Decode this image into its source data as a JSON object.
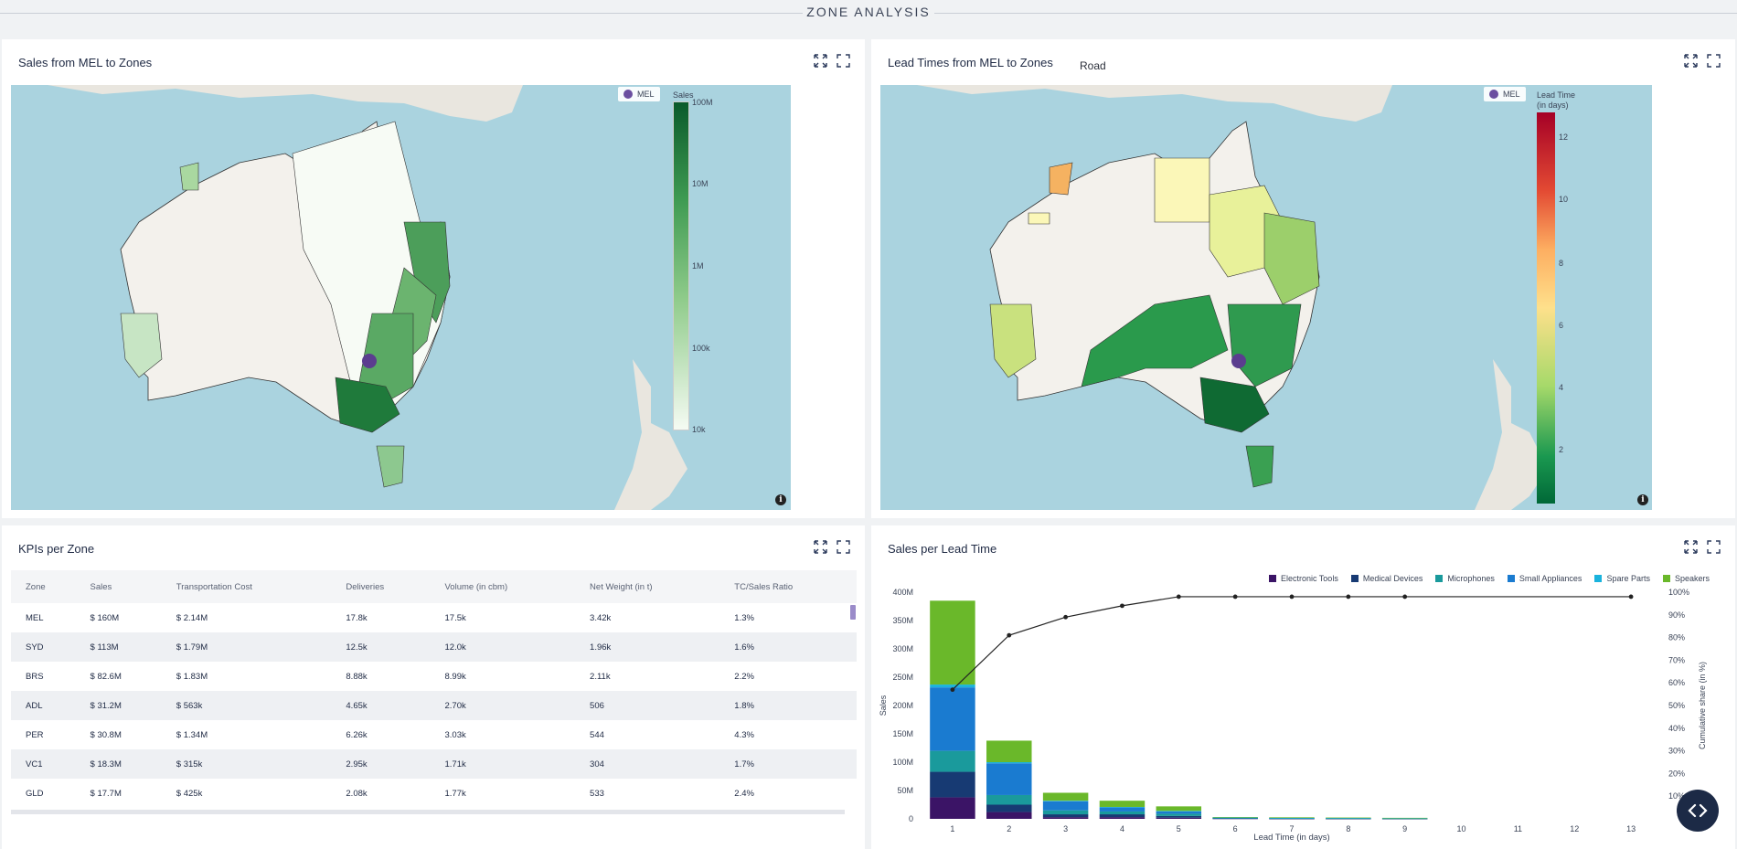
{
  "header": {
    "title": "ZONE ANALYSIS"
  },
  "panels": {
    "sales_map": {
      "title": "Sales from MEL to Zones",
      "marker_legend": "MEL",
      "colorbar": {
        "title": "Sales",
        "ticks": [
          "100M",
          "10M",
          "1M",
          "100k",
          "10k"
        ],
        "color_low": "#f5fbf3",
        "color_high": "#0b5a2b"
      }
    },
    "lead_map": {
      "title": "Lead Times from MEL to Zones",
      "mode": "Road",
      "marker_legend": "MEL",
      "colorbar": {
        "title_line1": "Lead Time",
        "title_line2": "(in days)",
        "ticks": [
          "12",
          "10",
          "8",
          "6",
          "4",
          "2"
        ]
      }
    },
    "kpi": {
      "title": "KPIs per Zone",
      "columns": [
        "Zone",
        "Sales",
        "Transportation Cost",
        "Deliveries",
        "Volume (in cbm)",
        "Net Weight (in t)",
        "TC/Sales Ratio"
      ],
      "rows": [
        [
          "MEL",
          "$ 160M",
          "$ 2.14M",
          "17.8k",
          "17.5k",
          "3.42k",
          "1.3%"
        ],
        [
          "SYD",
          "$ 113M",
          "$ 1.79M",
          "12.5k",
          "12.0k",
          "1.96k",
          "1.6%"
        ],
        [
          "BRS",
          "$ 82.6M",
          "$ 1.83M",
          "8.88k",
          "8.99k",
          "2.11k",
          "2.2%"
        ],
        [
          "ADL",
          "$ 31.2M",
          "$ 563k",
          "4.65k",
          "2.70k",
          "506",
          "1.8%"
        ],
        [
          "PER",
          "$ 30.8M",
          "$ 1.34M",
          "6.26k",
          "3.03k",
          "544",
          "4.3%"
        ],
        [
          "VC1",
          "$ 18.3M",
          "$ 315k",
          "2.95k",
          "1.71k",
          "304",
          "1.7%"
        ],
        [
          "GLD",
          "$ 17.7M",
          "$ 425k",
          "2.08k",
          "1.77k",
          "533",
          "2.4%"
        ]
      ]
    },
    "lead_chart": {
      "title": "Sales per Lead Time"
    }
  },
  "chart_data": {
    "type": "bar",
    "stacked": true,
    "xlabel": "Lead Time (in days)",
    "ylabel": "Sales",
    "y2label": "Cumulative share (in %)",
    "categories": [
      1,
      2,
      3,
      4,
      5,
      6,
      7,
      8,
      9,
      10,
      11,
      12,
      13
    ],
    "ylim": [
      0,
      400
    ],
    "y_ticks": [
      "0",
      "50M",
      "100M",
      "150M",
      "200M",
      "250M",
      "300M",
      "350M",
      "400M"
    ],
    "y2lim": [
      0,
      100
    ],
    "y2_ticks": [
      "10%",
      "20%",
      "30%",
      "40%",
      "50%",
      "60%",
      "70%",
      "80%",
      "90%",
      "100%"
    ],
    "legend_position": "top-right",
    "series": [
      {
        "name": "Electronic Tools",
        "color": "#3b1466",
        "values": [
          38,
          12,
          3,
          3,
          2,
          0.5,
          0.3,
          0.3,
          0.2,
          0,
          0,
          0,
          0
        ]
      },
      {
        "name": "Medical Devices",
        "color": "#173a73",
        "values": [
          45,
          13,
          5,
          5,
          3,
          0.5,
          0.3,
          0.3,
          0.2,
          0,
          0,
          0,
          0
        ]
      },
      {
        "name": "Microphones",
        "color": "#1a9a9c",
        "values": [
          37,
          17,
          7,
          5,
          4,
          0.5,
          0.5,
          0.3,
          0.3,
          0,
          0,
          0,
          0
        ]
      },
      {
        "name": "Small Appliances",
        "color": "#1a7bd0",
        "values": [
          112,
          56,
          16,
          7,
          4,
          0.5,
          0.5,
          0.5,
          0.3,
          0,
          0,
          0,
          0
        ]
      },
      {
        "name": "Spare Parts",
        "color": "#1ab3dd",
        "values": [
          5,
          2,
          1,
          1,
          1,
          0.2,
          0.2,
          0.2,
          0.2,
          0,
          0,
          0,
          0
        ]
      },
      {
        "name": "Speakers",
        "color": "#6ab82a",
        "values": [
          148,
          38,
          14,
          11,
          8,
          1,
          1,
          0.7,
          0.6,
          0,
          0,
          0,
          0
        ]
      }
    ],
    "cumulative_share": [
      57,
      81,
      89,
      94,
      98,
      98,
      98,
      98,
      98,
      null,
      null,
      null,
      98
    ]
  }
}
